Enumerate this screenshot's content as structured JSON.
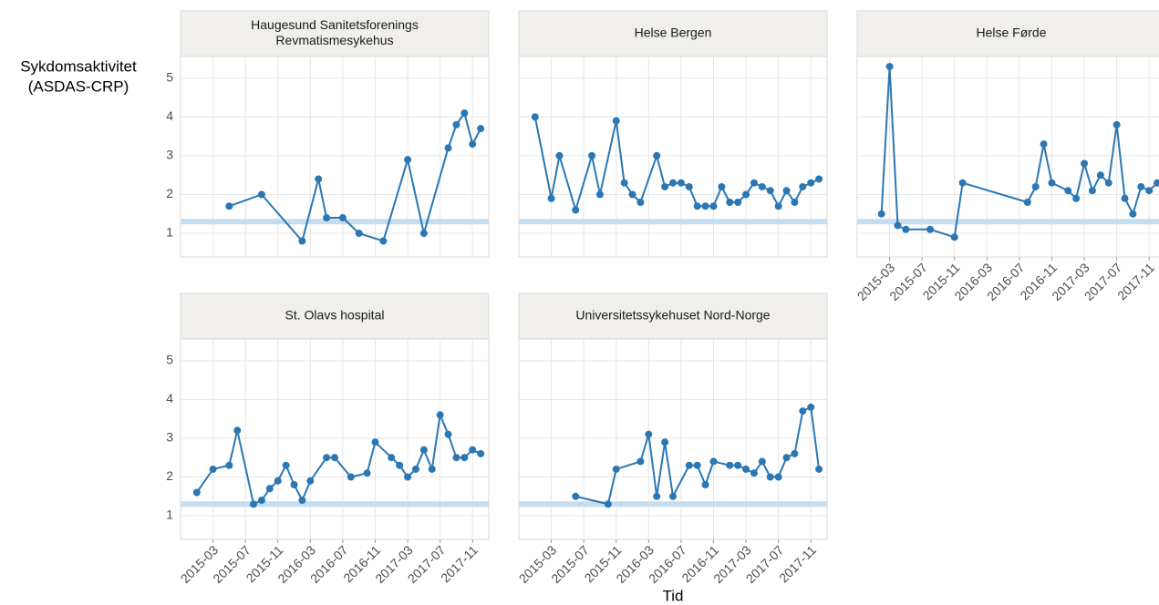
{
  "y_label": [
    "Sykdomsaktivitet",
    "(ASDAS-CRP)"
  ],
  "x_label": "Tid",
  "chart_data": [
    {
      "type": "line",
      "title": [
        "Haugesund Sanitetsforenings",
        "Revmatismesykehus"
      ],
      "color": "#2a77b4",
      "reference_line": 1.3,
      "reference_color": "#c6dcef",
      "x": [
        "2015-05",
        "2015-09",
        "2016-02",
        "2016-04",
        "2016-05",
        "2016-07",
        "2016-09",
        "2016-12",
        "2017-03",
        "2017-05",
        "2017-08",
        "2017-09",
        "2017-10",
        "2017-11",
        "2017-12"
      ],
      "values": [
        1.7,
        2.0,
        0.8,
        2.4,
        1.4,
        1.4,
        1.0,
        0.8,
        2.9,
        1.0,
        3.2,
        3.8,
        4.1,
        3.3,
        3.7
      ],
      "xlim": [
        "2014-11",
        "2018-01"
      ],
      "xticks": [
        "2015-03",
        "2015-07",
        "2015-11",
        "2016-03",
        "2016-07",
        "2016-11",
        "2017-03",
        "2017-07",
        "2017-11"
      ],
      "ylim": [
        0.39,
        5.56
      ],
      "yticks": [
        1,
        2,
        3,
        4,
        5
      ],
      "grid": true
    },
    {
      "type": "line",
      "title": [
        "Helse Bergen"
      ],
      "color": "#2a77b4",
      "reference_line": 1.3,
      "reference_color": "#c6dcef",
      "x": [
        "2015-01",
        "2015-03",
        "2015-04",
        "2015-06",
        "2015-08",
        "2015-09",
        "2015-11",
        "2015-12",
        "2016-01",
        "2016-02",
        "2016-04",
        "2016-05",
        "2016-06",
        "2016-07",
        "2016-08",
        "2016-09",
        "2016-10",
        "2016-11",
        "2016-12",
        "2017-01",
        "2017-02",
        "2017-03",
        "2017-04",
        "2017-05",
        "2017-06",
        "2017-07",
        "2017-08",
        "2017-09",
        "2017-10",
        "2017-11",
        "2017-12"
      ],
      "values": [
        4.0,
        1.9,
        3.0,
        1.6,
        3.0,
        2.0,
        3.9,
        2.3,
        2.0,
        1.8,
        3.0,
        2.2,
        2.3,
        2.3,
        2.2,
        1.7,
        1.7,
        1.7,
        2.2,
        1.8,
        1.8,
        2.0,
        2.3,
        2.2,
        2.1,
        1.7,
        2.1,
        1.8,
        2.2,
        2.3,
        2.4
      ],
      "xlim": [
        "2014-11",
        "2018-01"
      ],
      "xticks": [
        "2015-03",
        "2015-07",
        "2015-11",
        "2016-03",
        "2016-07",
        "2016-11",
        "2017-03",
        "2017-07",
        "2017-11"
      ],
      "ylim": [
        0.39,
        5.56
      ],
      "yticks": [
        1,
        2,
        3,
        4,
        5
      ],
      "grid": true
    },
    {
      "type": "line",
      "title": [
        "Helse Førde"
      ],
      "color": "#2a77b4",
      "reference_line": 1.3,
      "reference_color": "#c6dcef",
      "x": [
        "2015-02",
        "2015-03",
        "2015-04",
        "2015-05",
        "2015-08",
        "2015-11",
        "2015-12",
        "2016-08",
        "2016-09",
        "2016-10",
        "2016-11",
        "2017-01",
        "2017-02",
        "2017-03",
        "2017-04",
        "2017-05",
        "2017-06",
        "2017-07",
        "2017-08",
        "2017-09",
        "2017-10",
        "2017-11",
        "2017-12"
      ],
      "values": [
        1.5,
        5.3,
        1.2,
        1.1,
        1.1,
        0.9,
        2.3,
        1.8,
        2.2,
        3.3,
        2.3,
        2.1,
        1.9,
        2.8,
        2.1,
        2.5,
        2.3,
        3.8,
        1.9,
        1.5,
        2.2,
        2.1,
        2.3
      ],
      "xlim": [
        "2014-11",
        "2018-01"
      ],
      "xticks": [
        "2015-03",
        "2015-07",
        "2015-11",
        "2016-03",
        "2016-07",
        "2016-11",
        "2017-03",
        "2017-07",
        "2017-11"
      ],
      "ylim": [
        0.39,
        5.56
      ],
      "yticks": [
        1,
        2,
        3,
        4,
        5
      ],
      "grid": true
    },
    {
      "type": "line",
      "title": [
        "St. Olavs hospital"
      ],
      "color": "#2a77b4",
      "reference_line": 1.3,
      "reference_color": "#c6dcef",
      "x": [
        "2015-01",
        "2015-03",
        "2015-05",
        "2015-06",
        "2015-08",
        "2015-09",
        "2015-10",
        "2015-11",
        "2015-12",
        "2016-01",
        "2016-02",
        "2016-03",
        "2016-05",
        "2016-06",
        "2016-08",
        "2016-10",
        "2016-11",
        "2017-01",
        "2017-02",
        "2017-03",
        "2017-04",
        "2017-05",
        "2017-06",
        "2017-07",
        "2017-08",
        "2017-09",
        "2017-10",
        "2017-11",
        "2017-12"
      ],
      "values": [
        1.6,
        2.2,
        2.3,
        3.2,
        1.3,
        1.4,
        1.7,
        1.9,
        2.3,
        1.8,
        1.4,
        1.9,
        2.5,
        2.5,
        2.0,
        2.1,
        2.9,
        2.5,
        2.3,
        2.0,
        2.2,
        2.7,
        2.2,
        3.6,
        3.1,
        2.5,
        2.5,
        2.7,
        2.6
      ],
      "xlim": [
        "2014-11",
        "2018-01"
      ],
      "xticks": [
        "2015-03",
        "2015-07",
        "2015-11",
        "2016-03",
        "2016-07",
        "2016-11",
        "2017-03",
        "2017-07",
        "2017-11"
      ],
      "ylim": [
        0.39,
        5.56
      ],
      "yticks": [
        1,
        2,
        3,
        4,
        5
      ],
      "grid": true
    },
    {
      "type": "line",
      "title": [
        "Universitetssykehuset Nord-Norge"
      ],
      "color": "#2a77b4",
      "reference_line": 1.3,
      "reference_color": "#c6dcef",
      "x": [
        "2015-06",
        "2015-10",
        "2015-11",
        "2016-02",
        "2016-03",
        "2016-04",
        "2016-05",
        "2016-06",
        "2016-08",
        "2016-09",
        "2016-10",
        "2016-11",
        "2017-01",
        "2017-02",
        "2017-03",
        "2017-04",
        "2017-05",
        "2017-06",
        "2017-07",
        "2017-08",
        "2017-09",
        "2017-10",
        "2017-11",
        "2017-12"
      ],
      "values": [
        1.5,
        1.3,
        2.2,
        2.4,
        3.1,
        1.5,
        2.9,
        1.5,
        2.3,
        2.3,
        1.8,
        2.4,
        2.3,
        2.3,
        2.2,
        2.1,
        2.4,
        2.0,
        2.0,
        2.5,
        2.6,
        3.7,
        3.8,
        2.2
      ],
      "xlim": [
        "2014-11",
        "2018-01"
      ],
      "xticks": [
        "2015-03",
        "2015-07",
        "2015-11",
        "2016-03",
        "2016-07",
        "2016-11",
        "2017-03",
        "2017-07",
        "2017-11"
      ],
      "ylim": [
        0.39,
        5.56
      ],
      "yticks": [
        1,
        2,
        3,
        4,
        5
      ],
      "grid": true
    }
  ]
}
